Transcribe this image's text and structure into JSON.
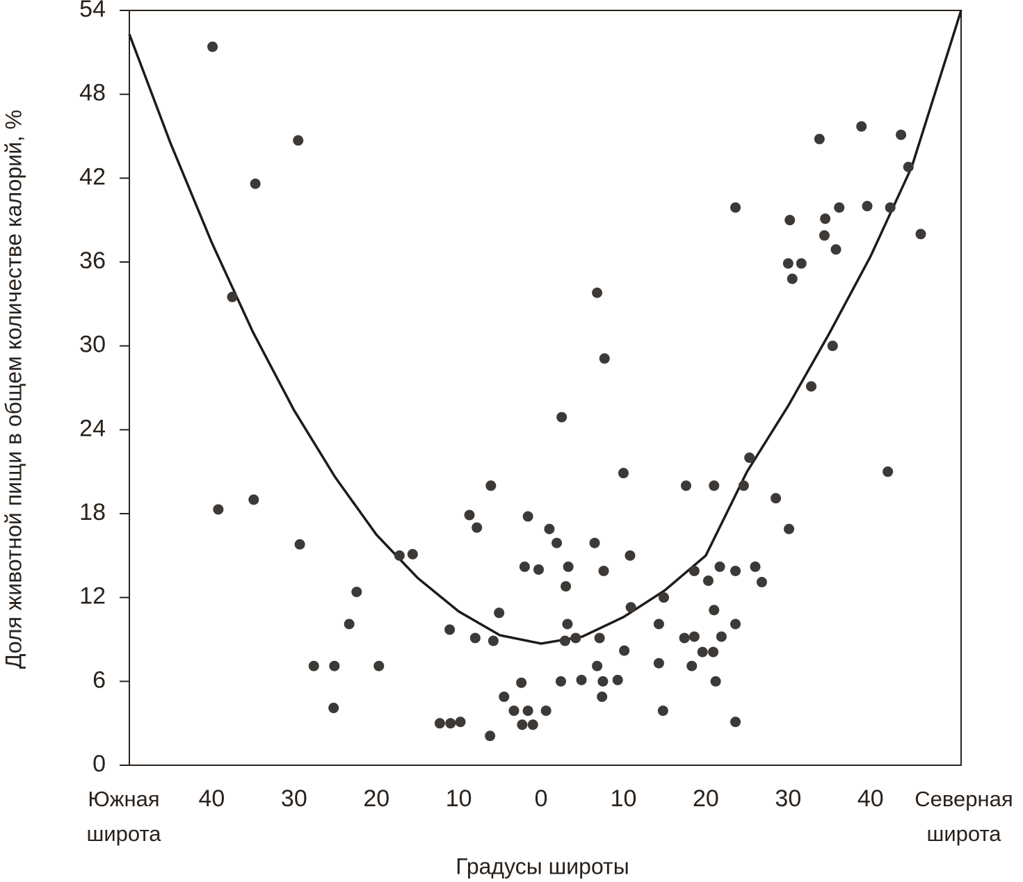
{
  "chart_data": {
    "type": "scatter",
    "y_label": "Доля животной пищи в общем количестве калорий, %",
    "x_label": "Градусы широты",
    "xlim": [
      -50,
      51
    ],
    "ylim": [
      0,
      54
    ],
    "yticks": [
      0,
      6,
      12,
      18,
      24,
      30,
      36,
      42,
      48,
      54
    ],
    "xticks": [
      {
        "value": -50,
        "label": "Южная широта"
      },
      {
        "value": -40,
        "label": "40"
      },
      {
        "value": -30,
        "label": "30"
      },
      {
        "value": -20,
        "label": "20"
      },
      {
        "value": -10,
        "label": "10"
      },
      0,
      10,
      20,
      30,
      40,
      {
        "value": 51,
        "label": "Северная широта"
      }
    ],
    "series": [
      {
        "color": "#3d3936",
        "x": [
          -39.9,
          -29.5,
          -34.7,
          -37.5,
          -39.2,
          -34.9,
          -29.3,
          -27.6,
          -25.1,
          -25.2,
          -23.3,
          -22.4,
          -19.7,
          -17.2,
          -15.6,
          -12.3,
          -11.1,
          -11.0,
          -9.8,
          -8.7,
          -8.0,
          -7.8,
          -6.2,
          -6.1,
          -5.8,
          -5.1,
          -4.5,
          -3.3,
          -2.4,
          -2.3,
          -2.0,
          -1.6,
          -1.6,
          -1.0,
          -0.3,
          0.6,
          1.0,
          1.9,
          2.4,
          2.5,
          2.9,
          3.0,
          3.2,
          3.3,
          4.2,
          4.9,
          6.5,
          6.8,
          6.8,
          7.1,
          7.4,
          7.5,
          7.6,
          7.7,
          9.3,
          10.0,
          10.1,
          10.8,
          10.9,
          14.3,
          14.3,
          14.8,
          14.9,
          17.4,
          17.6,
          18.3,
          18.6,
          18.6,
          19.6,
          20.3,
          20.9,
          21.0,
          21.0,
          21.2,
          21.7,
          21.9,
          23.6,
          23.6,
          23.6,
          23.6,
          24.6,
          25.3,
          26.0,
          26.8,
          28.5,
          30.0,
          30.1,
          30.2,
          30.5,
          31.6,
          32.8,
          33.8,
          34.4,
          34.5,
          35.4,
          35.8,
          36.2,
          38.9,
          39.6,
          42.1,
          42.4,
          43.7,
          44.6,
          46.1
        ],
        "values": [
          51.4,
          44.7,
          41.6,
          33.5,
          18.3,
          19.0,
          15.8,
          7.1,
          7.1,
          4.1,
          10.1,
          12.4,
          7.1,
          15.0,
          15.1,
          3.0,
          9.7,
          3.0,
          3.1,
          17.9,
          9.1,
          17.0,
          2.1,
          20.0,
          8.9,
          10.9,
          4.9,
          3.9,
          5.9,
          2.9,
          14.2,
          17.8,
          3.9,
          2.9,
          14.0,
          3.9,
          16.9,
          15.9,
          6.0,
          24.9,
          8.9,
          12.8,
          10.1,
          14.2,
          9.1,
          6.1,
          15.9,
          33.8,
          7.1,
          9.1,
          4.9,
          6.0,
          13.9,
          29.1,
          6.1,
          20.9,
          8.2,
          15.0,
          11.3,
          10.1,
          7.3,
          3.9,
          12.0,
          9.1,
          20.0,
          7.1,
          9.2,
          13.9,
          8.1,
          13.2,
          8.1,
          20.0,
          11.1,
          6.0,
          14.2,
          9.2,
          39.9,
          13.9,
          10.1,
          3.1,
          20.0,
          22.0,
          14.2,
          13.1,
          19.1,
          35.9,
          16.9,
          39.0,
          34.8,
          35.9,
          27.1,
          44.8,
          37.9,
          39.1,
          30.0,
          36.9,
          39.9,
          45.7,
          40.0,
          21.0,
          39.9,
          45.1,
          42.8,
          38.0
        ]
      }
    ],
    "curve": {
      "color": "#1f1a16",
      "x": [
        -50,
        -45,
        -40,
        -35,
        -30,
        -25,
        -20,
        -15,
        -10,
        -5,
        0,
        5,
        10,
        15,
        20,
        25,
        30,
        35,
        40,
        45,
        51
      ],
      "values": [
        52.3,
        44.5,
        37.4,
        31.0,
        25.4,
        20.6,
        16.5,
        13.4,
        11.0,
        9.3,
        8.7,
        9.2,
        10.6,
        12.5,
        15.0,
        21.0,
        25.7,
        30.9,
        36.4,
        42.8,
        54.0
      ]
    }
  }
}
